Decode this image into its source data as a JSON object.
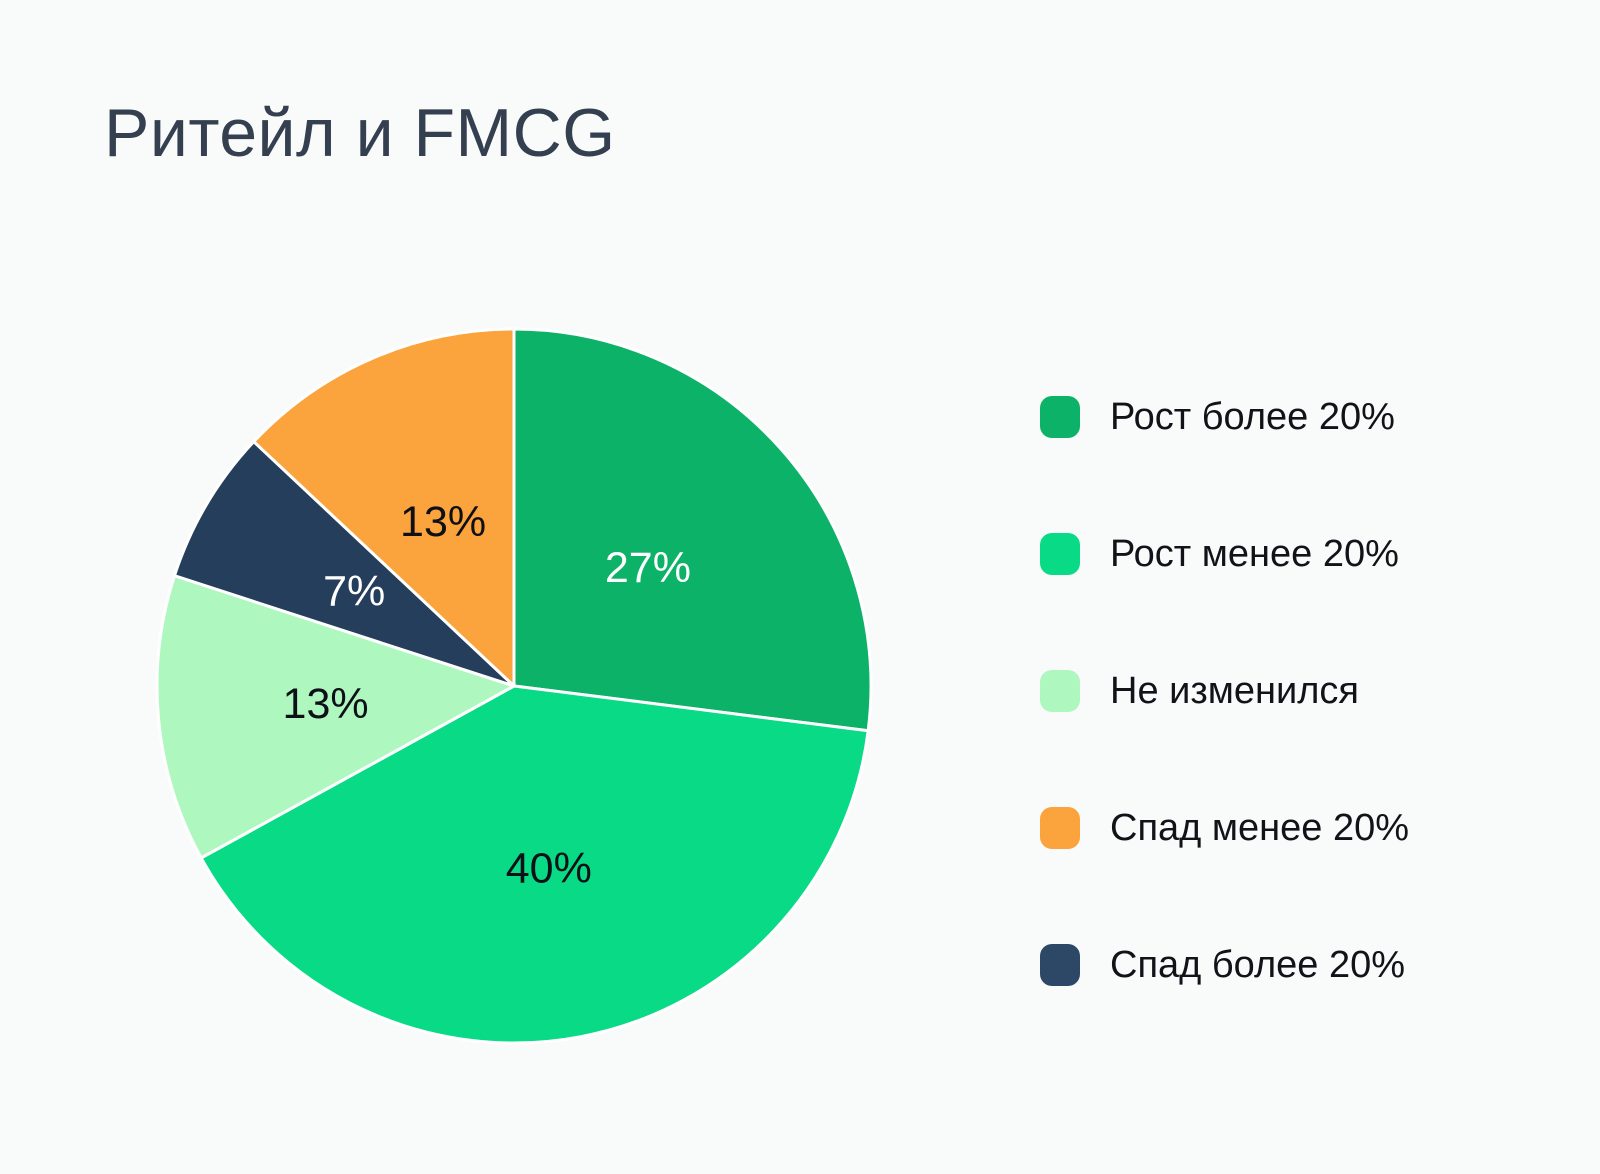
{
  "title": "Ритейл и FMCG",
  "colors": {
    "background": "#f8fbf9",
    "title_text": "#343f50",
    "legend_text": "#101419",
    "slice_separator": "#ffffff"
  },
  "chart_data": {
    "type": "pie",
    "title": "Ритейл и FMCG",
    "start_angle": "12 o'clock, clockwise",
    "legend_position": "right",
    "categories": [
      "Рост более 20%",
      "Рост менее 20%",
      "Не изменился",
      "Спад более 20%",
      "Спад менее 20%"
    ],
    "values": [
      27,
      40,
      13,
      7,
      13
    ],
    "slices": [
      {
        "name": "Рост более 20%",
        "value": 27,
        "label": "27%",
        "color": "#0db269",
        "label_color": "#ffffff",
        "label_radius": 0.5
      },
      {
        "name": "Рост менее 20%",
        "value": 40,
        "label": "40%",
        "color": "#08da85",
        "label_color": "#0d1117",
        "label_radius": 0.52
      },
      {
        "name": "Не изменился",
        "value": 13,
        "label": "13%",
        "color": "#aef8c0",
        "label_color": "#0d1117",
        "label_radius": 0.53
      },
      {
        "name": "Спад более 20%",
        "value": 7,
        "label": "7%",
        "color": "#253e5c",
        "label_color": "#ffffff",
        "label_radius": 0.52
      },
      {
        "name": "Спад менее 20%",
        "value": 13,
        "label": "13%",
        "color": "#fba33c",
        "label_color": "#0d1117",
        "label_radius": 0.5
      }
    ]
  },
  "legend": {
    "items": [
      {
        "label": "Рост более 20%",
        "color": "#0db269"
      },
      {
        "label": "Рост менее 20%",
        "color": "#08da85"
      },
      {
        "label": "Не изменился",
        "color": "#aef8c0"
      },
      {
        "label": "Спад менее 20%",
        "color": "#fba33c"
      },
      {
        "label": "Спад более 20%",
        "color": "#2c4866"
      }
    ]
  }
}
